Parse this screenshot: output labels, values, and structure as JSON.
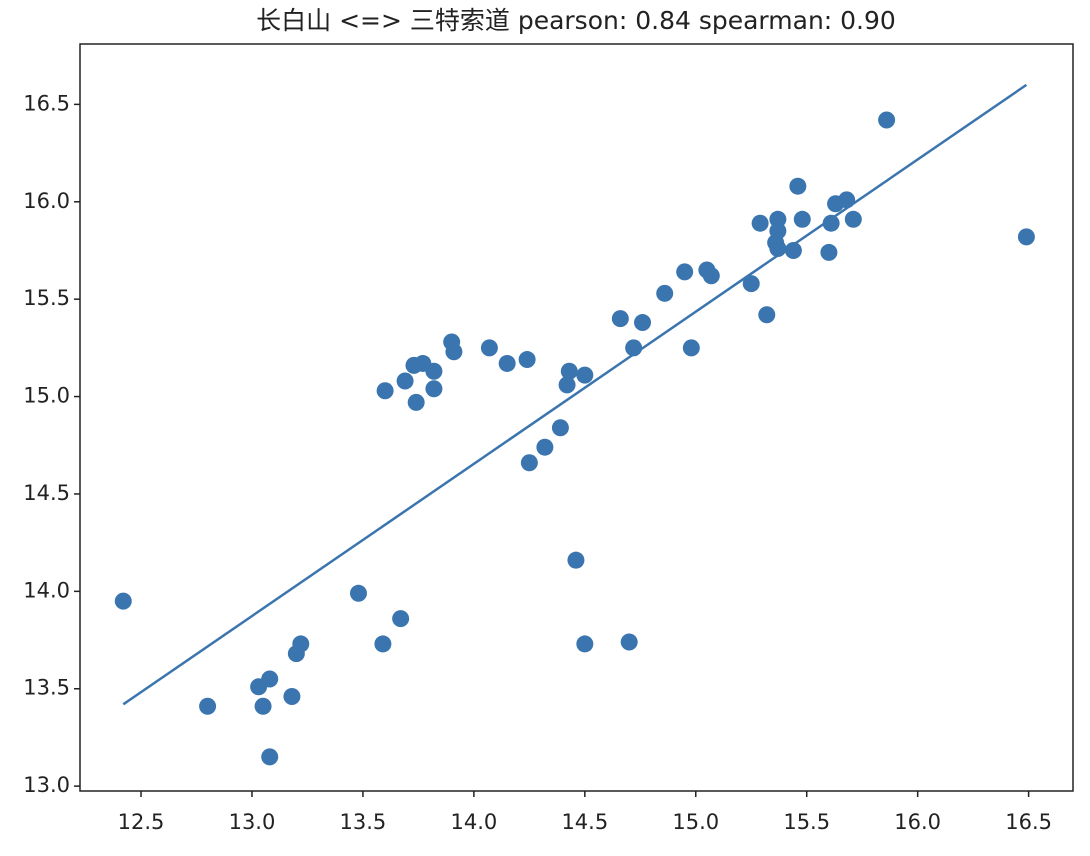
{
  "chart_data": {
    "type": "scatter",
    "title": "长白山 <=> 三特索道 pearson: 0.84 spearman: 0.90",
    "color": "#3b75af",
    "x": [
      12.42,
      12.8,
      13.03,
      13.05,
      13.08,
      13.08,
      13.18,
      13.2,
      13.22,
      13.48,
      13.59,
      13.67,
      13.6,
      13.69,
      13.73,
      13.74,
      13.77,
      13.82,
      13.82,
      13.9,
      13.91,
      14.07,
      14.15,
      14.24,
      14.25,
      14.32,
      14.39,
      14.43,
      14.42,
      14.5,
      14.46,
      14.5,
      14.7,
      14.66,
      14.76,
      14.72,
      14.86,
      14.95,
      14.98,
      15.05,
      15.07,
      15.25,
      15.32,
      15.29,
      15.37,
      15.37,
      15.36,
      15.37,
      15.44,
      15.46,
      15.48,
      15.6,
      15.61,
      15.63,
      15.68,
      15.71,
      15.86,
      16.49
    ],
    "y": [
      13.95,
      13.41,
      13.51,
      13.41,
      13.55,
      13.15,
      13.46,
      13.68,
      13.73,
      13.99,
      13.73,
      13.86,
      15.03,
      15.08,
      15.16,
      14.97,
      15.17,
      15.13,
      15.04,
      15.28,
      15.23,
      15.25,
      15.17,
      15.19,
      14.66,
      14.74,
      14.84,
      15.13,
      15.06,
      15.11,
      14.16,
      13.73,
      13.74,
      15.4,
      15.38,
      15.25,
      15.53,
      15.64,
      15.25,
      15.65,
      15.62,
      15.58,
      15.42,
      15.89,
      15.91,
      15.85,
      15.79,
      15.76,
      15.75,
      16.08,
      15.91,
      15.74,
      15.89,
      15.99,
      16.01,
      15.91,
      16.42,
      15.82
    ],
    "fit": {
      "x": [
        12.42,
        16.49
      ],
      "y": [
        13.42,
        16.6
      ]
    },
    "xlim": [
      12.225,
      16.7
    ],
    "ylim": [
      12.975,
      16.81
    ],
    "xticks": [
      12.5,
      {
        "value": 13,
        "label": "13.0"
      },
      13.5,
      {
        "value": 14,
        "label": "14.0"
      },
      14.5,
      {
        "value": 15,
        "label": "15.0"
      },
      15.5,
      {
        "value": 16,
        "label": "16.0"
      },
      16.5
    ],
    "yticks": [
      {
        "value": 13,
        "label": "13.0"
      },
      13.5,
      {
        "value": 14,
        "label": "14.0"
      },
      14.5,
      {
        "value": 15,
        "label": "15.0"
      },
      15.5,
      {
        "value": 16,
        "label": "16.0"
      },
      16.5
    ]
  }
}
